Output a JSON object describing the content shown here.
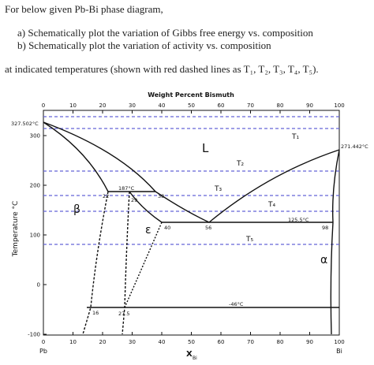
{
  "header": {
    "intro": "For below given Pb-Bi phase diagram,",
    "tasks": [
      "a) Schematically plot the variation of Gibbs free energy vs. composition",
      "b) Schematically plot the variation of activity vs. composition"
    ],
    "note": "at indicated temperatures (shown with red dashed lines as T₁, T₂, T₃, T₄, T₅)."
  },
  "diagram": {
    "title": "Weight Percent Bismuth",
    "top_ticks": [
      0,
      10,
      20,
      30,
      40,
      50,
      60,
      70,
      80,
      90,
      100
    ],
    "bottom_ticks": [
      0,
      10,
      20,
      30,
      40,
      50,
      60,
      70,
      80,
      90,
      100
    ],
    "y_ticks": [
      300,
      200,
      100,
      0,
      -100
    ],
    "y_label": "Temperature °C",
    "x_end_left": "Pb",
    "x_end_right": "Bi",
    "x_label": "X",
    "x_label_sub": "Bi",
    "annotations": [
      "327.502°C",
      "271.442°C",
      "187°C",
      "125.5°C",
      "-46°C",
      "22",
      "29",
      "38",
      "40",
      "56",
      "98",
      "16",
      "27.5"
    ],
    "phases": [
      "L",
      "β",
      "ε",
      "α"
    ],
    "temperatures": [
      "T₁",
      "T₂",
      "T₃",
      "T₄",
      "T₅"
    ]
  }
}
